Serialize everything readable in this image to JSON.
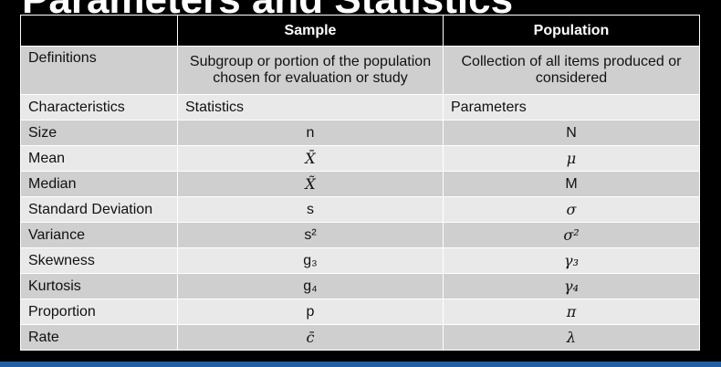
{
  "title": "Parameters and Statistics",
  "header": {
    "blank": "",
    "sample": "Sample",
    "population": "Population"
  },
  "rows": [
    {
      "label": "Definitions",
      "sample": "Subgroup or portion of the population chosen for evaluation or study",
      "population": "Collection of all items produced or considered"
    },
    {
      "label": "Characteristics",
      "sample": "Statistics",
      "population": "Parameters"
    },
    {
      "label": "Size",
      "sample": "n",
      "population": "N"
    },
    {
      "label": "Mean",
      "sample": "X̄",
      "population": "μ"
    },
    {
      "label": "Median",
      "sample": "X̃",
      "population": "M"
    },
    {
      "label": "Standard Deviation",
      "sample": "s",
      "population": "σ"
    },
    {
      "label": "Variance",
      "sample": "s²",
      "population": "σ²"
    },
    {
      "label": "Skewness",
      "sample": "g₃",
      "population": "γ₃"
    },
    {
      "label": "Kurtosis",
      "sample": "g₄",
      "population": "γ₄"
    },
    {
      "label": "Proportion",
      "sample": "p",
      "population": "π"
    },
    {
      "label": "Rate",
      "sample": "c̄",
      "population": "λ"
    }
  ]
}
